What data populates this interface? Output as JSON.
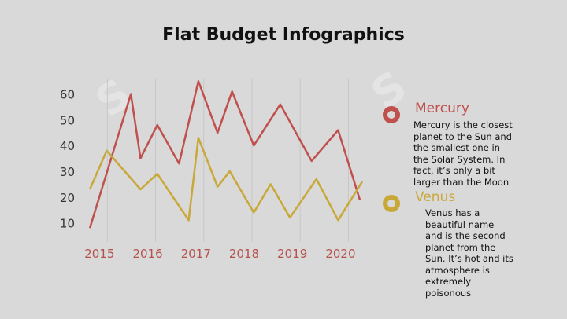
{
  "title": "Flat Budget Infographics",
  "colors": {
    "background": "#d9d9d9",
    "mercury": "#c0504d",
    "venus": "#c9a83a",
    "tick_x": "#b5514c",
    "tick_y": "#333333",
    "grid": "#c7c7c7"
  },
  "legend": [
    {
      "name": "Mercury",
      "description": "Mercury is the closest planet to the Sun and the smallest one in the Solar System. In fact, it’s only a bit larger than the Moon"
    },
    {
      "name": "Venus",
      "description": "Venus has a beautiful name and is the second planet from the Sun. It’s hot and its atmosphere is extremely poisonous"
    }
  ],
  "chart_data": {
    "type": "line",
    "title": "",
    "xlabel": "",
    "ylabel": "",
    "x_ticks": [
      "2015",
      "2016",
      "2017",
      "2018",
      "2019",
      "2020"
    ],
    "y_ticks": [
      10,
      20,
      30,
      40,
      50,
      60
    ],
    "xlim": [
      2014.7,
      2020.45
    ],
    "ylim": [
      5,
      66
    ],
    "grid": "vertical",
    "series": [
      {
        "name": "Mercury",
        "color": "#c0504d",
        "x": [
          2014.8,
          2015.65,
          2015.85,
          2016.2,
          2016.65,
          2017.05,
          2017.45,
          2017.75,
          2018.2,
          2018.75,
          2019.4,
          2019.95,
          2020.4
        ],
        "y": [
          8,
          60,
          35,
          48,
          33,
          65,
          45,
          61,
          40,
          56,
          34,
          46,
          19
        ]
      },
      {
        "name": "Venus",
        "color": "#c9a83a",
        "x": [
          2014.8,
          2015.15,
          2015.85,
          2016.2,
          2016.85,
          2017.05,
          2017.45,
          2017.7,
          2018.2,
          2018.55,
          2018.95,
          2019.5,
          2019.95,
          2020.45
        ],
        "y": [
          23,
          38,
          23,
          29,
          11,
          43,
          24,
          30,
          14,
          25,
          12,
          27,
          11,
          26
        ]
      }
    ]
  }
}
